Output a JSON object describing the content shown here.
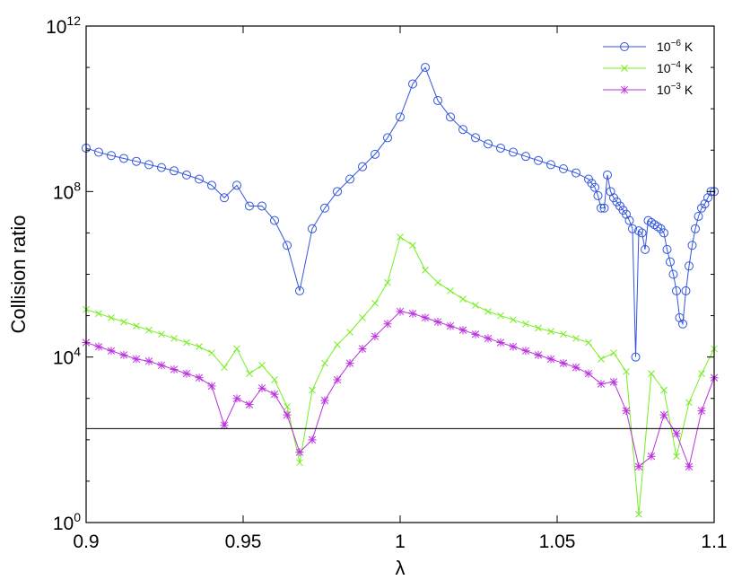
{
  "chart_data": {
    "type": "line",
    "title": "",
    "xlabel": "λ",
    "ylabel": "Collision ratio",
    "xlim": [
      0.9,
      1.1
    ],
    "ylim_log10": [
      0,
      12
    ],
    "yscale": "log",
    "x_ticks": [
      "0.9",
      "0.95",
      "1",
      "1.05",
      "1.1"
    ],
    "x_tick_values": [
      0.9,
      0.95,
      1.0,
      1.05,
      1.1
    ],
    "y_ticks": [
      {
        "base": "10",
        "exp": "0"
      },
      {
        "base": "10",
        "exp": "4"
      },
      {
        "base": "10",
        "exp": "8"
      },
      {
        "base": "10",
        "exp": "12"
      }
    ],
    "y_tick_exponents": [
      0,
      4,
      8,
      12
    ],
    "grid": false,
    "legend_placement": "top-right",
    "reference_line_log10": 2.27,
    "series": [
      {
        "name": "10⁻⁶ K",
        "legend_base": "10",
        "legend_exp": "−6",
        "legend_unit": " K",
        "color": "#3355dd",
        "marker": "circle",
        "x": [
          0.9,
          0.904,
          0.908,
          0.912,
          0.916,
          0.92,
          0.924,
          0.928,
          0.932,
          0.936,
          0.94,
          0.944,
          0.948,
          0.952,
          0.956,
          0.96,
          0.964,
          0.968,
          0.972,
          0.976,
          0.98,
          0.984,
          0.988,
          0.992,
          0.996,
          1.0,
          1.004,
          1.008,
          1.012,
          1.016,
          1.02,
          1.024,
          1.028,
          1.032,
          1.036,
          1.04,
          1.044,
          1.048,
          1.052,
          1.056,
          1.06,
          1.061,
          1.062,
          1.063,
          1.064,
          1.065,
          1.066,
          1.067,
          1.068,
          1.069,
          1.07,
          1.071,
          1.072,
          1.073,
          1.074,
          1.075,
          1.076,
          1.077,
          1.078,
          1.079,
          1.08,
          1.081,
          1.082,
          1.083,
          1.084,
          1.085,
          1.086,
          1.087,
          1.088,
          1.089,
          1.09,
          1.091,
          1.092,
          1.093,
          1.094,
          1.095,
          1.096,
          1.097,
          1.098,
          1.099,
          1.1
        ],
        "log10_y": [
          9.05,
          8.95,
          8.87,
          8.8,
          8.73,
          8.65,
          8.58,
          8.5,
          8.4,
          8.3,
          8.15,
          7.85,
          8.15,
          7.65,
          7.65,
          7.3,
          6.7,
          5.6,
          7.1,
          7.6,
          8.0,
          8.3,
          8.6,
          8.9,
          9.3,
          9.8,
          10.6,
          11.0,
          10.2,
          9.8,
          9.5,
          9.3,
          9.15,
          9.05,
          8.95,
          8.85,
          8.75,
          8.65,
          8.55,
          8.45,
          8.3,
          8.2,
          8.1,
          7.9,
          7.6,
          7.6,
          8.4,
          8.0,
          7.85,
          7.75,
          7.65,
          7.55,
          7.45,
          7.3,
          7.1,
          4.0,
          7.05,
          7.0,
          6.6,
          7.3,
          7.25,
          7.2,
          7.15,
          7.1,
          7.0,
          6.6,
          6.3,
          6.0,
          5.6,
          4.95,
          4.8,
          5.6,
          6.2,
          6.7,
          7.1,
          7.4,
          7.6,
          7.7,
          7.85,
          8.0,
          8.0
        ]
      },
      {
        "name": "10⁻⁴ K",
        "legend_base": "10",
        "legend_exp": "−4",
        "legend_unit": " K",
        "color": "#77ee22",
        "marker": "x",
        "x": [
          0.9,
          0.904,
          0.908,
          0.912,
          0.916,
          0.92,
          0.924,
          0.928,
          0.932,
          0.936,
          0.94,
          0.944,
          0.948,
          0.952,
          0.956,
          0.96,
          0.964,
          0.968,
          0.972,
          0.976,
          0.98,
          0.984,
          0.988,
          0.992,
          0.996,
          1.0,
          1.004,
          1.008,
          1.012,
          1.016,
          1.02,
          1.024,
          1.028,
          1.032,
          1.036,
          1.04,
          1.044,
          1.048,
          1.052,
          1.056,
          1.06,
          1.064,
          1.068,
          1.072,
          1.076,
          1.08,
          1.084,
          1.088,
          1.092,
          1.096,
          1.1
        ],
        "log10_y": [
          5.15,
          5.05,
          4.95,
          4.85,
          4.75,
          4.65,
          4.55,
          4.45,
          4.35,
          4.25,
          4.1,
          3.75,
          4.2,
          3.6,
          3.8,
          3.45,
          2.8,
          1.45,
          3.2,
          3.85,
          4.3,
          4.6,
          4.95,
          5.3,
          5.8,
          6.9,
          6.7,
          6.1,
          5.8,
          5.6,
          5.4,
          5.25,
          5.1,
          5.0,
          4.9,
          4.8,
          4.7,
          4.62,
          4.55,
          4.45,
          4.35,
          3.95,
          4.1,
          3.65,
          0.2,
          3.6,
          3.2,
          1.6,
          2.9,
          3.6,
          4.2
        ]
      },
      {
        "name": "10⁻³ K",
        "legend_base": "10",
        "legend_exp": "−3",
        "legend_unit": " K",
        "color": "#bb33dd",
        "marker": "asterisk",
        "x": [
          0.9,
          0.904,
          0.908,
          0.912,
          0.916,
          0.92,
          0.924,
          0.928,
          0.932,
          0.936,
          0.94,
          0.944,
          0.948,
          0.952,
          0.956,
          0.96,
          0.964,
          0.968,
          0.972,
          0.976,
          0.98,
          0.984,
          0.988,
          0.992,
          0.996,
          1.0,
          1.004,
          1.008,
          1.012,
          1.016,
          1.02,
          1.024,
          1.028,
          1.032,
          1.036,
          1.04,
          1.044,
          1.048,
          1.052,
          1.056,
          1.06,
          1.064,
          1.068,
          1.072,
          1.076,
          1.08,
          1.084,
          1.088,
          1.092,
          1.096,
          1.1
        ],
        "log10_y": [
          4.35,
          4.25,
          4.15,
          4.05,
          3.95,
          3.9,
          3.8,
          3.7,
          3.6,
          3.5,
          3.3,
          2.35,
          3.0,
          2.85,
          3.25,
          3.1,
          2.6,
          1.7,
          2.0,
          2.95,
          3.45,
          3.85,
          4.2,
          4.5,
          4.8,
          5.1,
          5.05,
          4.95,
          4.85,
          4.75,
          4.65,
          4.55,
          4.45,
          4.35,
          4.25,
          4.15,
          4.05,
          3.95,
          3.85,
          3.75,
          3.6,
          3.35,
          3.4,
          2.7,
          1.35,
          1.6,
          2.6,
          2.15,
          1.35,
          2.7,
          3.5
        ]
      }
    ]
  }
}
